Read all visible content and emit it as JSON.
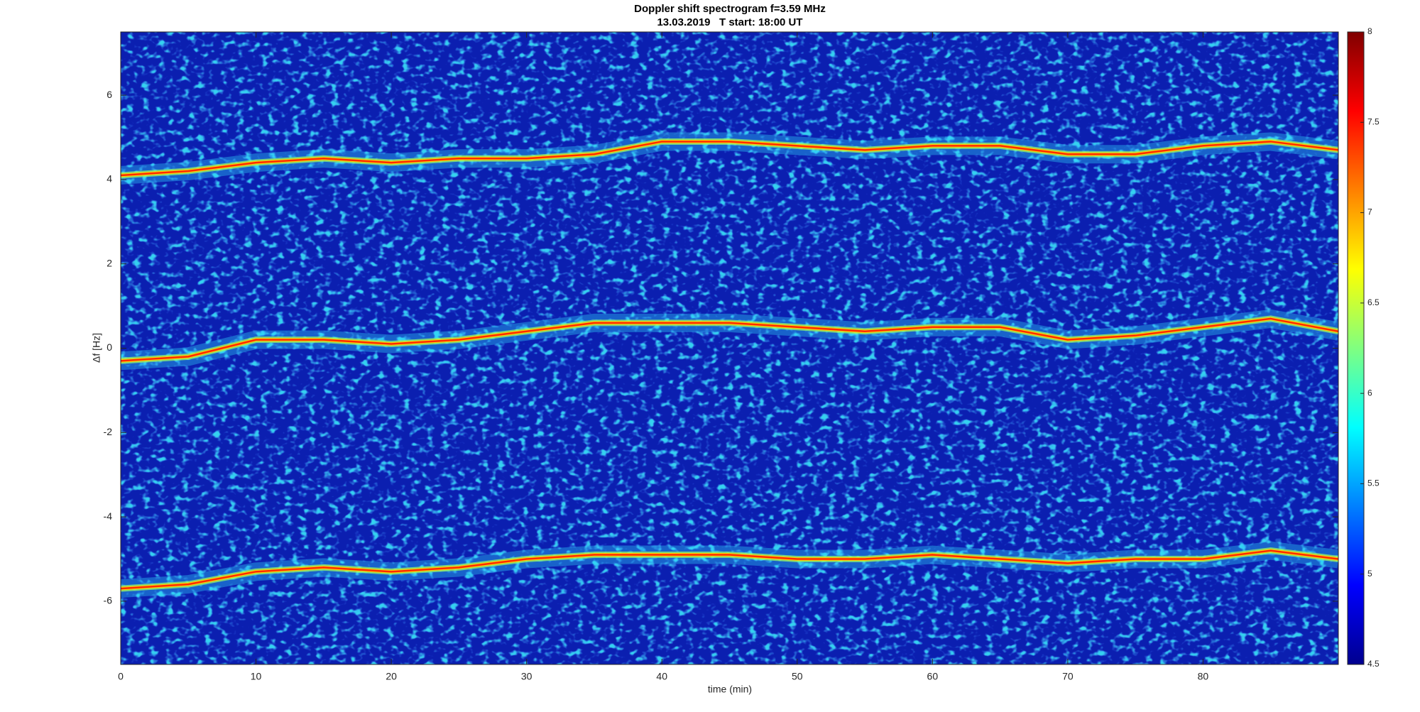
{
  "chart_data": {
    "type": "spectrogram",
    "title": "Doppler shift spectrogram f=3.59 MHz",
    "subtitle": "13.03.2019   T start: 18:00 UT",
    "x_label": "time (min)",
    "y_label": "Δf [Hz]",
    "xlim": [
      0,
      90
    ],
    "xticks": [
      0,
      10,
      20,
      30,
      40,
      50,
      60,
      70,
      80
    ],
    "ylim": [
      -7.5,
      7.5
    ],
    "yticks": [
      -6,
      -4,
      -2,
      0,
      2,
      4,
      6
    ],
    "colormap": "jet",
    "clim": [
      4.5,
      8
    ],
    "cticks": [
      4.5,
      5,
      5.5,
      6,
      6.5,
      7,
      7.5,
      8
    ],
    "x": [
      0,
      5,
      10,
      15,
      20,
      25,
      30,
      35,
      40,
      45,
      50,
      55,
      60,
      65,
      70,
      75,
      80,
      85,
      90
    ],
    "series": [
      {
        "color": "#ff2a00",
        "values": [
          4.1,
          4.2,
          4.4,
          4.5,
          4.4,
          4.5,
          4.5,
          4.6,
          4.9,
          4.9,
          4.8,
          4.7,
          4.8,
          4.8,
          4.6,
          4.6,
          4.8,
          4.9,
          4.7
        ]
      },
      {
        "color": "#ff2a00",
        "values": [
          -0.3,
          -0.2,
          0.2,
          0.2,
          0.1,
          0.2,
          0.4,
          0.6,
          0.6,
          0.6,
          0.5,
          0.4,
          0.5,
          0.5,
          0.2,
          0.3,
          0.5,
          0.7,
          0.4
        ]
      },
      {
        "color": "#ff2a00",
        "values": [
          -5.7,
          -5.6,
          -5.3,
          -5.2,
          -5.3,
          -5.2,
          -5.0,
          -4.9,
          -4.9,
          -4.9,
          -5.0,
          -5.0,
          -4.9,
          -5.0,
          -5.1,
          -5.0,
          -5.0,
          -4.8,
          -5.0
        ]
      }
    ]
  }
}
